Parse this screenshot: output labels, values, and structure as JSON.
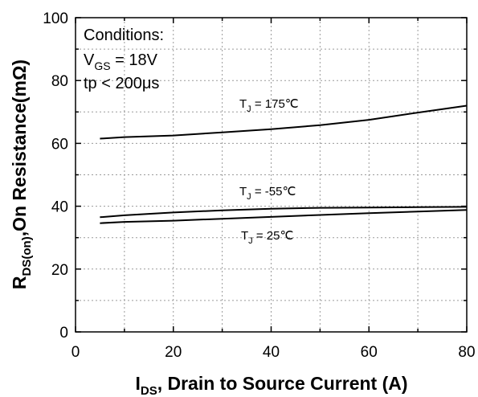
{
  "chart_data": {
    "type": "line",
    "xlabel_main": "I",
    "xlabel_sub": "DS",
    "xlabel_rest": ", Drain to Source Current  (A)",
    "ylabel_main": "R",
    "ylabel_sub": "DS(on)",
    "ylabel_rest": ",On Resistance(mΩ)",
    "xlim": [
      0,
      80
    ],
    "ylim": [
      0,
      100
    ],
    "xticks": [
      "0",
      "20",
      "40",
      "60",
      "80"
    ],
    "yticks": [
      "0",
      "20",
      "40",
      "60",
      "80",
      "100"
    ],
    "grid": true,
    "conditions": {
      "line1": "Conditions:",
      "line2_main": "V",
      "line2_sub": "GS",
      "line2_rest": " = 18V",
      "line3": "tp < 200μs"
    },
    "series": [
      {
        "name_main": "T",
        "name_sub": "J",
        "name_rest": " = 175℃",
        "x": [
          5,
          10,
          20,
          30,
          40,
          50,
          60,
          70,
          80
        ],
        "y": [
          61.5,
          62.0,
          62.5,
          63.5,
          64.5,
          65.8,
          67.5,
          69.8,
          72.0
        ]
      },
      {
        "name_main": "T",
        "name_sub": "J",
        "name_rest": " = -55℃",
        "x": [
          5,
          10,
          20,
          30,
          40,
          50,
          60,
          70,
          80
        ],
        "y": [
          36.5,
          37.1,
          38.0,
          38.7,
          39.2,
          39.5,
          39.6,
          39.7,
          39.8
        ]
      },
      {
        "name_main": "T",
        "name_sub": "J",
        "name_rest": " = 25℃",
        "x": [
          5,
          10,
          20,
          30,
          40,
          50,
          60,
          70,
          80
        ],
        "y": [
          34.6,
          35.0,
          35.4,
          36.0,
          36.6,
          37.2,
          37.8,
          38.3,
          38.8
        ]
      }
    ]
  }
}
